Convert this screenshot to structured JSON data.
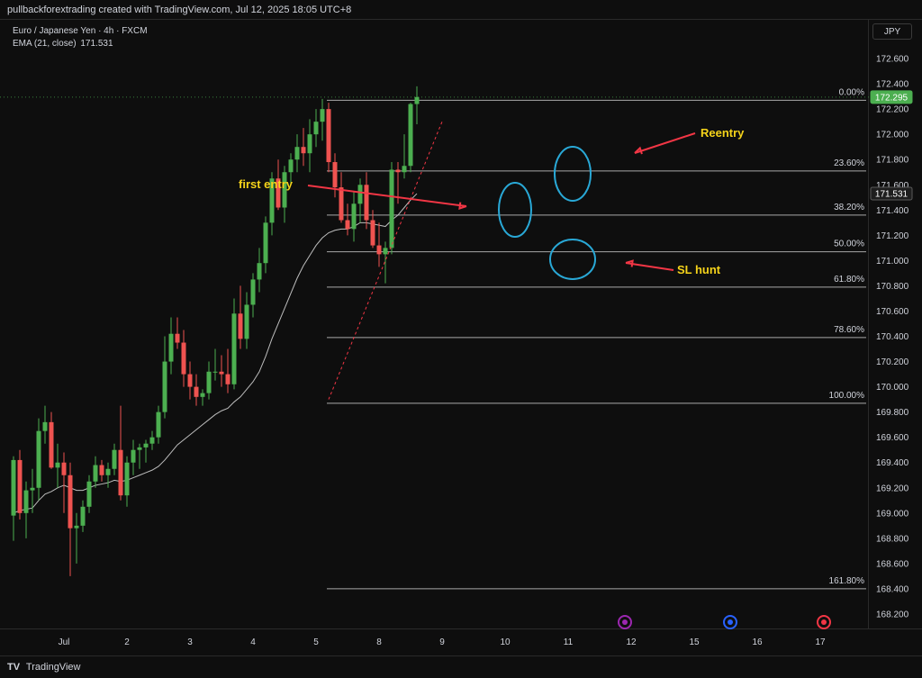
{
  "header": {
    "title": "pullbackforextrading created with TradingView.com, Jul 12, 2025 18:05 UTC+8"
  },
  "legend": {
    "symbol": "Euro / Japanese Yen · 4h · FXCM",
    "indicator_label": "EMA (21, close)",
    "indicator_value": "171.531"
  },
  "currency_button": "JPY",
  "footer": {
    "brand": "TradingView"
  },
  "colors": {
    "up": "#26a69a",
    "up_fill": "#4caf50",
    "down": "#ef5350",
    "ema": "#bdbdbd",
    "fib_line": "#cfcfcf",
    "annotation_arrow": "#f23645",
    "annotation_text": "#f5d31a",
    "circle": "#29a8d6",
    "price_tag": "#4caf50"
  },
  "chart_data": {
    "type": "candlestick",
    "title": "Euro / Japanese Yen · 4h · FXCM",
    "y_axis": {
      "ylim": [
        168.1,
        172.85
      ],
      "ticks": [
        "172.600",
        "172.400",
        "172.200",
        "172.000",
        "171.800",
        "171.600",
        "171.400",
        "171.200",
        "171.000",
        "170.800",
        "170.600",
        "170.400",
        "170.200",
        "170.000",
        "169.800",
        "169.600",
        "169.400",
        "169.200",
        "169.000",
        "168.800",
        "168.600",
        "168.400",
        "168.200"
      ]
    },
    "x_axis": {
      "ticks": [
        {
          "label": "Jul",
          "index": 8
        },
        {
          "label": "2",
          "index": 18
        },
        {
          "label": "3",
          "index": 28
        },
        {
          "label": "4",
          "index": 38
        },
        {
          "label": "5",
          "index": 48
        },
        {
          "label": "8",
          "index": 58
        },
        {
          "label": "9",
          "index": 68
        },
        {
          "label": "10",
          "index": 78
        },
        {
          "label": "11",
          "index": 88
        },
        {
          "label": "12",
          "index": 98
        },
        {
          "label": "15",
          "index": 108
        },
        {
          "label": "16",
          "index": 118
        },
        {
          "label": "17",
          "index": 128
        }
      ],
      "xlim": [
        0,
        135
      ]
    },
    "candles": [
      {
        "o": 168.98,
        "h": 169.45,
        "l": 168.78,
        "c": 169.42
      },
      {
        "o": 169.42,
        "h": 169.5,
        "l": 168.95,
        "c": 169.0
      },
      {
        "o": 169.0,
        "h": 169.25,
        "l": 168.8,
        "c": 169.18
      },
      {
        "o": 169.18,
        "h": 169.35,
        "l": 169.0,
        "c": 169.2
      },
      {
        "o": 169.2,
        "h": 169.75,
        "l": 169.1,
        "c": 169.65
      },
      {
        "o": 169.65,
        "h": 169.85,
        "l": 169.55,
        "c": 169.72
      },
      {
        "o": 169.72,
        "h": 169.8,
        "l": 169.35,
        "c": 169.36
      },
      {
        "o": 169.36,
        "h": 169.55,
        "l": 169.2,
        "c": 169.4
      },
      {
        "o": 169.4,
        "h": 169.48,
        "l": 169.0,
        "c": 169.3
      },
      {
        "o": 169.3,
        "h": 169.4,
        "l": 168.5,
        "c": 168.88
      },
      {
        "o": 168.88,
        "h": 169.0,
        "l": 168.6,
        "c": 168.9
      },
      {
        "o": 168.9,
        "h": 169.1,
        "l": 168.85,
        "c": 169.05
      },
      {
        "o": 169.05,
        "h": 169.3,
        "l": 169.0,
        "c": 169.25
      },
      {
        "o": 169.25,
        "h": 169.45,
        "l": 169.2,
        "c": 169.38
      },
      {
        "o": 169.38,
        "h": 169.42,
        "l": 169.25,
        "c": 169.3
      },
      {
        "o": 169.3,
        "h": 169.4,
        "l": 169.2,
        "c": 169.35
      },
      {
        "o": 169.35,
        "h": 169.55,
        "l": 169.3,
        "c": 169.5
      },
      {
        "o": 169.5,
        "h": 169.85,
        "l": 169.1,
        "c": 169.14
      },
      {
        "o": 169.14,
        "h": 169.45,
        "l": 169.05,
        "c": 169.4
      },
      {
        "o": 169.4,
        "h": 169.58,
        "l": 169.3,
        "c": 169.5
      },
      {
        "o": 169.5,
        "h": 169.55,
        "l": 169.35,
        "c": 169.52
      },
      {
        "o": 169.52,
        "h": 169.58,
        "l": 169.4,
        "c": 169.55
      },
      {
        "o": 169.55,
        "h": 169.65,
        "l": 169.5,
        "c": 169.6
      },
      {
        "o": 169.6,
        "h": 169.85,
        "l": 169.55,
        "c": 169.8
      },
      {
        "o": 169.8,
        "h": 170.4,
        "l": 169.75,
        "c": 170.2
      },
      {
        "o": 170.2,
        "h": 170.55,
        "l": 170.1,
        "c": 170.42
      },
      {
        "o": 170.42,
        "h": 170.55,
        "l": 170.3,
        "c": 170.35
      },
      {
        "o": 170.35,
        "h": 170.45,
        "l": 170.0,
        "c": 170.1
      },
      {
        "o": 170.1,
        "h": 170.2,
        "l": 169.9,
        "c": 170.0
      },
      {
        "o": 170.0,
        "h": 170.1,
        "l": 169.85,
        "c": 169.92
      },
      {
        "o": 169.92,
        "h": 169.98,
        "l": 169.85,
        "c": 169.95
      },
      {
        "o": 169.95,
        "h": 170.2,
        "l": 169.9,
        "c": 170.12
      },
      {
        "o": 170.12,
        "h": 170.3,
        "l": 170.05,
        "c": 170.12
      },
      {
        "o": 170.12,
        "h": 170.25,
        "l": 170.0,
        "c": 170.1
      },
      {
        "o": 170.1,
        "h": 170.3,
        "l": 169.95,
        "c": 170.02
      },
      {
        "o": 170.02,
        "h": 170.7,
        "l": 169.98,
        "c": 170.58
      },
      {
        "o": 170.58,
        "h": 170.8,
        "l": 170.3,
        "c": 170.38
      },
      {
        "o": 170.38,
        "h": 170.75,
        "l": 170.3,
        "c": 170.65
      },
      {
        "o": 170.65,
        "h": 170.9,
        "l": 170.55,
        "c": 170.85
      },
      {
        "o": 170.85,
        "h": 171.1,
        "l": 170.75,
        "c": 170.98
      },
      {
        "o": 170.98,
        "h": 171.35,
        "l": 170.9,
        "c": 171.3
      },
      {
        "o": 171.3,
        "h": 171.7,
        "l": 171.2,
        "c": 171.65
      },
      {
        "o": 171.65,
        "h": 171.8,
        "l": 171.4,
        "c": 171.42
      },
      {
        "o": 171.42,
        "h": 171.75,
        "l": 171.3,
        "c": 171.7
      },
      {
        "o": 171.7,
        "h": 171.85,
        "l": 171.6,
        "c": 171.8
      },
      {
        "o": 171.8,
        "h": 172.0,
        "l": 171.7,
        "c": 171.9
      },
      {
        "o": 171.9,
        "h": 172.05,
        "l": 171.75,
        "c": 171.85
      },
      {
        "o": 171.85,
        "h": 172.12,
        "l": 171.7,
        "c": 172.0
      },
      {
        "o": 172.0,
        "h": 172.2,
        "l": 171.9,
        "c": 172.1
      },
      {
        "o": 172.1,
        "h": 172.28,
        "l": 171.95,
        "c": 172.2
      },
      {
        "o": 172.2,
        "h": 172.25,
        "l": 171.7,
        "c": 171.78
      },
      {
        "o": 171.78,
        "h": 171.85,
        "l": 171.5,
        "c": 171.58
      },
      {
        "o": 171.58,
        "h": 171.7,
        "l": 171.3,
        "c": 171.32
      },
      {
        "o": 171.32,
        "h": 171.45,
        "l": 171.2,
        "c": 171.25
      },
      {
        "o": 171.25,
        "h": 171.55,
        "l": 171.15,
        "c": 171.45
      },
      {
        "o": 171.45,
        "h": 171.65,
        "l": 171.3,
        "c": 171.6
      },
      {
        "o": 171.6,
        "h": 171.7,
        "l": 171.25,
        "c": 171.32
      },
      {
        "o": 171.32,
        "h": 171.4,
        "l": 171.1,
        "c": 171.12
      },
      {
        "o": 171.12,
        "h": 171.3,
        "l": 170.95,
        "c": 171.05
      },
      {
        "o": 171.05,
        "h": 171.15,
        "l": 170.82,
        "c": 171.1
      },
      {
        "o": 171.1,
        "h": 171.78,
        "l": 171.05,
        "c": 171.72
      },
      {
        "o": 171.72,
        "h": 171.78,
        "l": 171.45,
        "c": 171.7
      },
      {
        "o": 171.7,
        "h": 172.0,
        "l": 171.65,
        "c": 171.75
      },
      {
        "o": 171.75,
        "h": 172.25,
        "l": 171.7,
        "c": 172.24
      },
      {
        "o": 172.24,
        "h": 172.38,
        "l": 172.08,
        "c": 172.295
      }
    ],
    "ema": {
      "name": "EMA (21, close)",
      "values": [
        169.0,
        169.02,
        169.03,
        169.04,
        169.1,
        169.15,
        169.17,
        169.2,
        169.22,
        169.2,
        169.18,
        169.18,
        169.2,
        169.22,
        169.23,
        169.24,
        169.26,
        169.25,
        169.26,
        169.28,
        169.3,
        169.32,
        169.34,
        169.37,
        169.42,
        169.48,
        169.54,
        169.58,
        169.62,
        169.66,
        169.7,
        169.74,
        169.78,
        169.81,
        169.83,
        169.88,
        169.92,
        169.98,
        170.04,
        170.12,
        170.24,
        170.38,
        170.5,
        170.62,
        170.74,
        170.86,
        170.96,
        171.04,
        171.12,
        171.18,
        171.22,
        171.24,
        171.25,
        171.25,
        171.27,
        171.3,
        171.3,
        171.29,
        171.28,
        171.27,
        171.32,
        171.36,
        171.42,
        171.48,
        171.53
      ]
    },
    "fib_levels": [
      {
        "label": "0.00%",
        "value": 172.27
      },
      {
        "label": "23.60%",
        "value": 171.71
      },
      {
        "label": "38.20%",
        "value": 171.36
      },
      {
        "label": "50.00%",
        "value": 171.07
      },
      {
        "label": "61.80%",
        "value": 170.79
      },
      {
        "label": "78.60%",
        "value": 170.39
      },
      {
        "label": "100.00%",
        "value": 169.87
      },
      {
        "label": "161.80%",
        "value": 168.4
      }
    ],
    "price_tags": [
      {
        "label": "172.295",
        "value": 172.295,
        "style": "green"
      },
      {
        "label": "171.531",
        "value": 171.531,
        "style": "dark"
      }
    ],
    "annotations": [
      {
        "text": "first entry"
      },
      {
        "text": "Reentry"
      },
      {
        "text": "SL hunt"
      }
    ],
    "grid": false,
    "bottom_icons": [
      "lightning-icon",
      "globe-icon",
      "target-icon"
    ]
  }
}
